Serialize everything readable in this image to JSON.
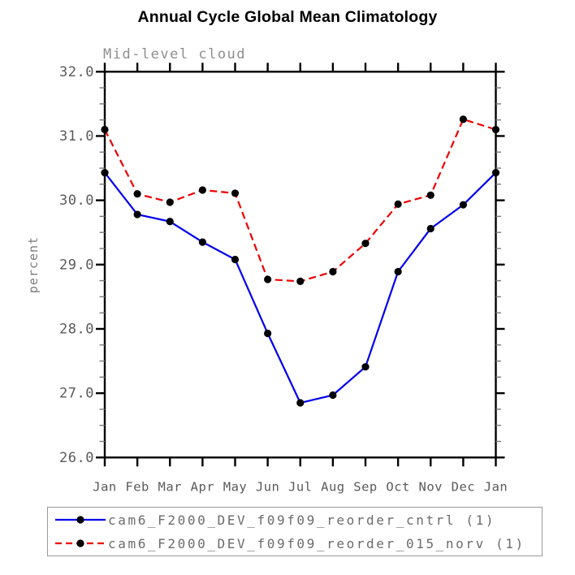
{
  "header": {
    "title": "Annual Cycle Global Mean Climatology",
    "subtitle": "Mid-level cloud"
  },
  "chart_data": {
    "type": "line",
    "title": "Annual Cycle Global Mean Climatology",
    "subtitle": "Mid-level cloud",
    "xlabel": "",
    "ylabel": "percent",
    "x_categories": [
      "Jan",
      "Feb",
      "Mar",
      "Apr",
      "May",
      "Jun",
      "Jul",
      "Aug",
      "Sep",
      "Oct",
      "Nov",
      "Dec",
      "Jan"
    ],
    "ylim": [
      26.0,
      32.0
    ],
    "y_major_step": 1.0,
    "y_minor_step": 0.25,
    "y_tick_format_decimals": 1,
    "grid": "off",
    "legend_position": "bottom-box",
    "marker": {
      "shape": "filled-circle",
      "color": "#000000"
    },
    "series": [
      {
        "name": "cam6_F2000_DEV_f09f09_reorder_cntrl (1)",
        "color": "#0000ee",
        "style": "solid",
        "values": [
          30.43,
          29.78,
          29.67,
          29.35,
          29.08,
          27.93,
          26.85,
          26.97,
          27.41,
          28.89,
          29.56,
          29.93,
          30.43
        ]
      },
      {
        "name": "cam6_F2000_DEV_f09f09_reorder_015_norv (1)",
        "color": "#ee0000",
        "style": "dashed",
        "values": [
          31.1,
          30.1,
          29.97,
          30.16,
          30.11,
          28.77,
          28.74,
          28.89,
          29.33,
          29.94,
          30.08,
          31.26,
          31.1
        ]
      }
    ],
    "colors": {
      "axis": "#000000",
      "minor_tick": "#7a7a7a",
      "tick_label": "#5a5a5a",
      "axis_title": "#7d7d7d"
    }
  }
}
